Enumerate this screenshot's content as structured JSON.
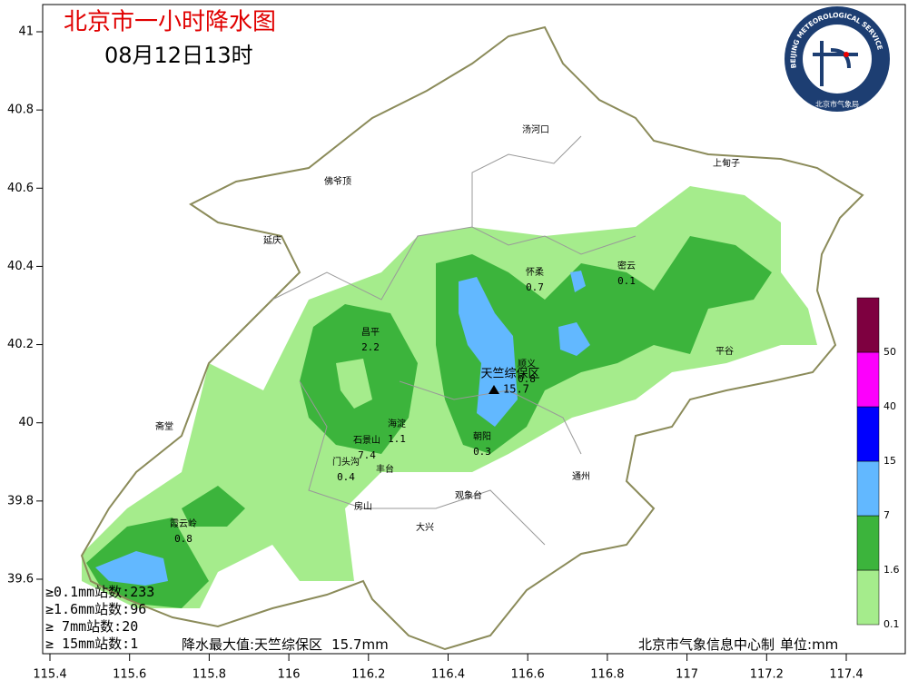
{
  "header": {
    "title": "北京市一小时降水图",
    "time": "08月12日13时"
  },
  "logo": {
    "ring_text": "BEIJING METEOROLOGICAL SERVICE",
    "name": "北京市气象局"
  },
  "axes": {
    "lat_ticks": [
      41,
      40.8,
      40.6,
      40.4,
      40.2,
      40,
      39.8,
      39.6
    ],
    "lon_ticks": [
      115.4,
      115.6,
      115.8,
      116,
      116.2,
      116.4,
      116.6,
      116.8,
      117,
      117.2,
      117.4
    ]
  },
  "places": [
    {
      "name": "汤河口"
    },
    {
      "name": "上甸子"
    },
    {
      "name": "佛爷顶"
    },
    {
      "name": "延庆"
    },
    {
      "name": "怀柔",
      "value": 0.7
    },
    {
      "name": "密云",
      "value": 0.1
    },
    {
      "name": "昌平",
      "value": 2.2
    },
    {
      "name": "平谷"
    },
    {
      "name": "天竺综保区",
      "value": 15.7
    },
    {
      "name": "顺义",
      "value": 0.8
    },
    {
      "name": "海淀",
      "value": 1.1
    },
    {
      "name": "斋堂"
    },
    {
      "name": "石景山",
      "value": 7.4
    },
    {
      "name": "朝阳",
      "value": 0.3
    },
    {
      "name": "门头沟",
      "value": 0.4
    },
    {
      "name": "丰台"
    },
    {
      "name": "通州"
    },
    {
      "name": "观象台"
    },
    {
      "name": "房山"
    },
    {
      "name": "大兴"
    },
    {
      "name": "霞云岭",
      "value": 0.8
    }
  ],
  "legend": {
    "levels": [
      {
        "label": "0.1",
        "color": "#a5ec8c"
      },
      {
        "label": "1.6",
        "color": "#3cb43c"
      },
      {
        "label": "7",
        "color": "#62b8ff"
      },
      {
        "label": "15",
        "color": "#0000fe"
      },
      {
        "label": "40",
        "color": "#fc00fc"
      },
      {
        "label": "50",
        "color": "#7e0040"
      }
    ]
  },
  "stats": [
    {
      "label": "≥0.1mm站数:",
      "count": 233
    },
    {
      "label": "≥1.6mm站数:",
      "count": 96
    },
    {
      "label": "≥  7mm站数:",
      "count": 20
    },
    {
      "label": "≥ 15mm站数:",
      "count": 1
    }
  ],
  "max": {
    "label": "降水最大值:天竺综保区",
    "value": "15.7mm"
  },
  "footer": {
    "credit": "北京市气象信息中心制",
    "unit": "单位:mm"
  }
}
